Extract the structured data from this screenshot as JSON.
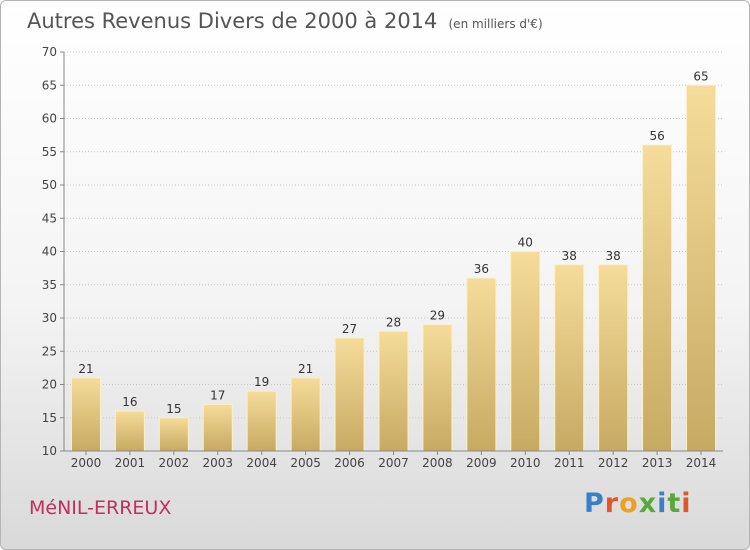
{
  "header": {
    "title": "Autres Revenus Divers de 2000 à 2014",
    "unit": "(en milliers d'€)"
  },
  "footer": {
    "place": "MéNIL-ERREUX",
    "brand": "Proxiti",
    "brand_colors": [
      "#3a7fc8",
      "#e0572a",
      "#f0a020",
      "#5aa83a",
      "#3a7fc8",
      "#5aa83a",
      "#e0572a"
    ]
  },
  "chart_data": {
    "type": "bar",
    "title": "Autres Revenus Divers de 2000 à 2014",
    "subtitle": "(en milliers d'€)",
    "xlabel": "",
    "ylabel": "",
    "categories": [
      "2000",
      "2001",
      "2002",
      "2003",
      "2004",
      "2005",
      "2006",
      "2007",
      "2008",
      "2009",
      "2010",
      "2011",
      "2012",
      "2013",
      "2014"
    ],
    "values": [
      21,
      16,
      15,
      17,
      19,
      21,
      27,
      28,
      29,
      36,
      40,
      38,
      38,
      56,
      65
    ],
    "ylim": [
      10,
      70
    ],
    "yticks": [
      10,
      15,
      20,
      25,
      30,
      35,
      40,
      45,
      50,
      55,
      60,
      65,
      70
    ],
    "grid": true,
    "bar_color_top": "#f5dc9a",
    "bar_color_bottom": "#c7aa62"
  }
}
